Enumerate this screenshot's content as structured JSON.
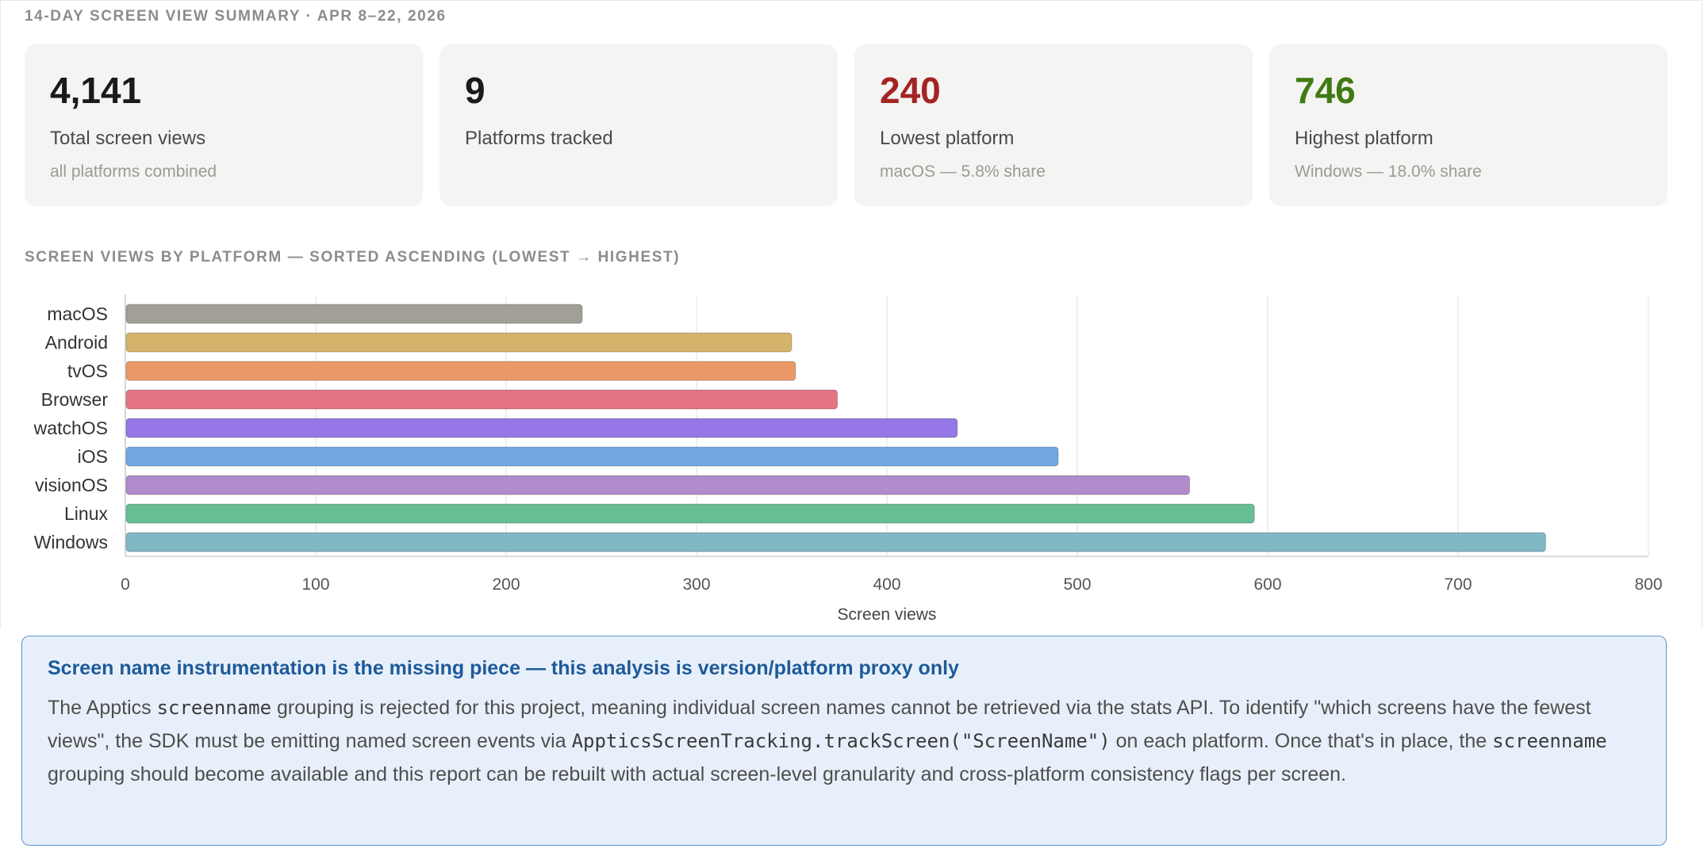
{
  "summary": {
    "title": "14-DAY SCREEN VIEW SUMMARY · APR 8–22, 2026",
    "cards": [
      {
        "value": "4,141",
        "label": "Total screen views",
        "sub": "all platforms combined",
        "color": "#1a1a1a"
      },
      {
        "value": "9",
        "label": "Platforms tracked",
        "sub": "",
        "color": "#1a1a1a"
      },
      {
        "value": "240",
        "label": "Lowest platform",
        "sub": "macOS — 5.8% share",
        "color": "#a32424"
      },
      {
        "value": "746",
        "label": "Highest platform",
        "sub": "Windows — 18.0% share",
        "color": "#3f7a12"
      }
    ]
  },
  "chart_section": {
    "title": "SCREEN VIEWS BY PLATFORM — SORTED ASCENDING (LOWEST → HIGHEST)"
  },
  "chart_data": {
    "type": "bar",
    "orientation": "horizontal",
    "categories": [
      "macOS",
      "Android",
      "tvOS",
      "Browser",
      "watchOS",
      "iOS",
      "visionOS",
      "Linux",
      "Windows"
    ],
    "values": [
      240,
      350,
      352,
      374,
      437,
      490,
      559,
      593,
      746
    ],
    "colors": [
      "#a19f98",
      "#d3b46a",
      "#eb9868",
      "#e57485",
      "#9677e8",
      "#71a8e4",
      "#b08ccc",
      "#67be92",
      "#80b9c4"
    ],
    "xlabel": "Screen views",
    "ylabel": "",
    "xlim": [
      0,
      800
    ],
    "xticks": [
      0,
      100,
      200,
      300,
      400,
      500,
      600,
      700,
      800
    ],
    "grid": true,
    "legend": "none"
  },
  "note": {
    "title": "Screen name instrumentation is the missing piece — this analysis is version/platform proxy only",
    "body_1": "The Apptics ",
    "code_1": "screenname",
    "body_2": " grouping is rejected for this project, meaning individual screen names cannot be retrieved via the stats API. To identify \"which screens have the fewest views\", the SDK must be emitting named screen events via ",
    "code_2": "AppticsScreenTracking.trackScreen(\"ScreenName\")",
    "body_3": " on each platform. Once that's in place, the ",
    "code_3": "screenname",
    "body_4": " grouping should become available and this report can be rebuilt with actual screen-level granularity and cross-platform consistency flags per screen."
  }
}
